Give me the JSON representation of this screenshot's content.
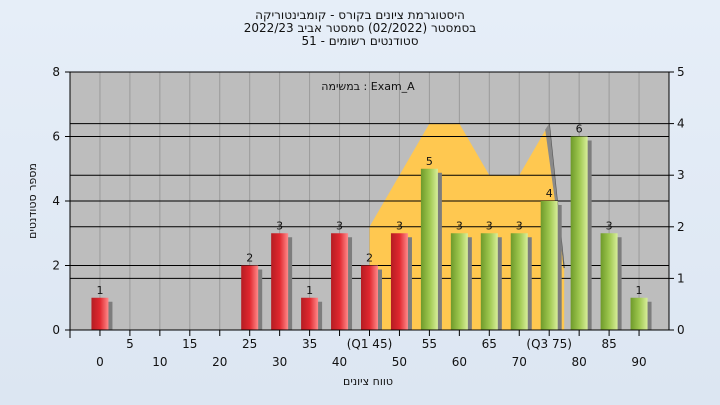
{
  "chart_data": {
    "type": "bar",
    "title_lines": [
      "היסטוגרמת ציונים בקורס - קומבינטוריקה",
      "בסמסטר  (02/2022)  סמסטר אביב 2022/23",
      "סטודנטים רשומים - 51"
    ],
    "annotation": "במשימה : Exam_A",
    "xlabel": "טווח ציונים",
    "ylabel": "מספר סטודנטים",
    "ylim": [
      0,
      8
    ],
    "y_ticks": [
      "0",
      "2",
      "4",
      "6",
      "8"
    ],
    "y2lim": [
      0,
      5
    ],
    "y2_ticks": [
      "0",
      "1",
      "2",
      "3",
      "4",
      "5"
    ],
    "x_top_labels": [
      "5",
      "15",
      "25",
      "35",
      "(Q1 45)",
      "55",
      "65",
      "(Q3 75)",
      "85"
    ],
    "x_bottom_labels": [
      "0",
      "10",
      "20",
      "30",
      "40",
      "50",
      "60",
      "70",
      "80",
      "90"
    ],
    "categories": [
      "0",
      "5",
      "10",
      "15",
      "20",
      "25",
      "30",
      "35",
      "40",
      "45",
      "50",
      "55",
      "60",
      "65",
      "70",
      "75",
      "80",
      "85",
      "90"
    ],
    "values": [
      1,
      0,
      0,
      0,
      0,
      2,
      3,
      1,
      3,
      2,
      3,
      5,
      3,
      3,
      3,
      4,
      6,
      3,
      1
    ],
    "value_labels": [
      "1",
      "",
      "",
      "",
      "",
      "2",
      "3",
      "1",
      "3",
      "2",
      "3",
      "5",
      "3",
      "3",
      "3",
      "4",
      "6",
      "3",
      "1"
    ],
    "bar_colors": [
      "red",
      "",
      "",
      "",
      "",
      "red",
      "red",
      "red",
      "red",
      "red",
      "red",
      "green",
      "green",
      "green",
      "green",
      "green",
      "green",
      "green",
      "green"
    ],
    "distribution_area": [
      {
        "x": 45,
        "y": 2
      },
      {
        "x": 55,
        "y": 4
      },
      {
        "x": 60,
        "y": 4
      },
      {
        "x": 65,
        "y": 3
      },
      {
        "x": 70,
        "y": 3
      },
      {
        "x": 75,
        "y": 4
      },
      {
        "x": 77.5,
        "y": 1.2
      }
    ],
    "grid": true,
    "legend": "none",
    "colors": {
      "background": "#e2eaf4",
      "plot_bg": "#bdbdbd",
      "red_bar": "#e0282f",
      "green_bar": "#9dc64e",
      "area": "#ffc850",
      "grid_line": "#000000"
    }
  }
}
